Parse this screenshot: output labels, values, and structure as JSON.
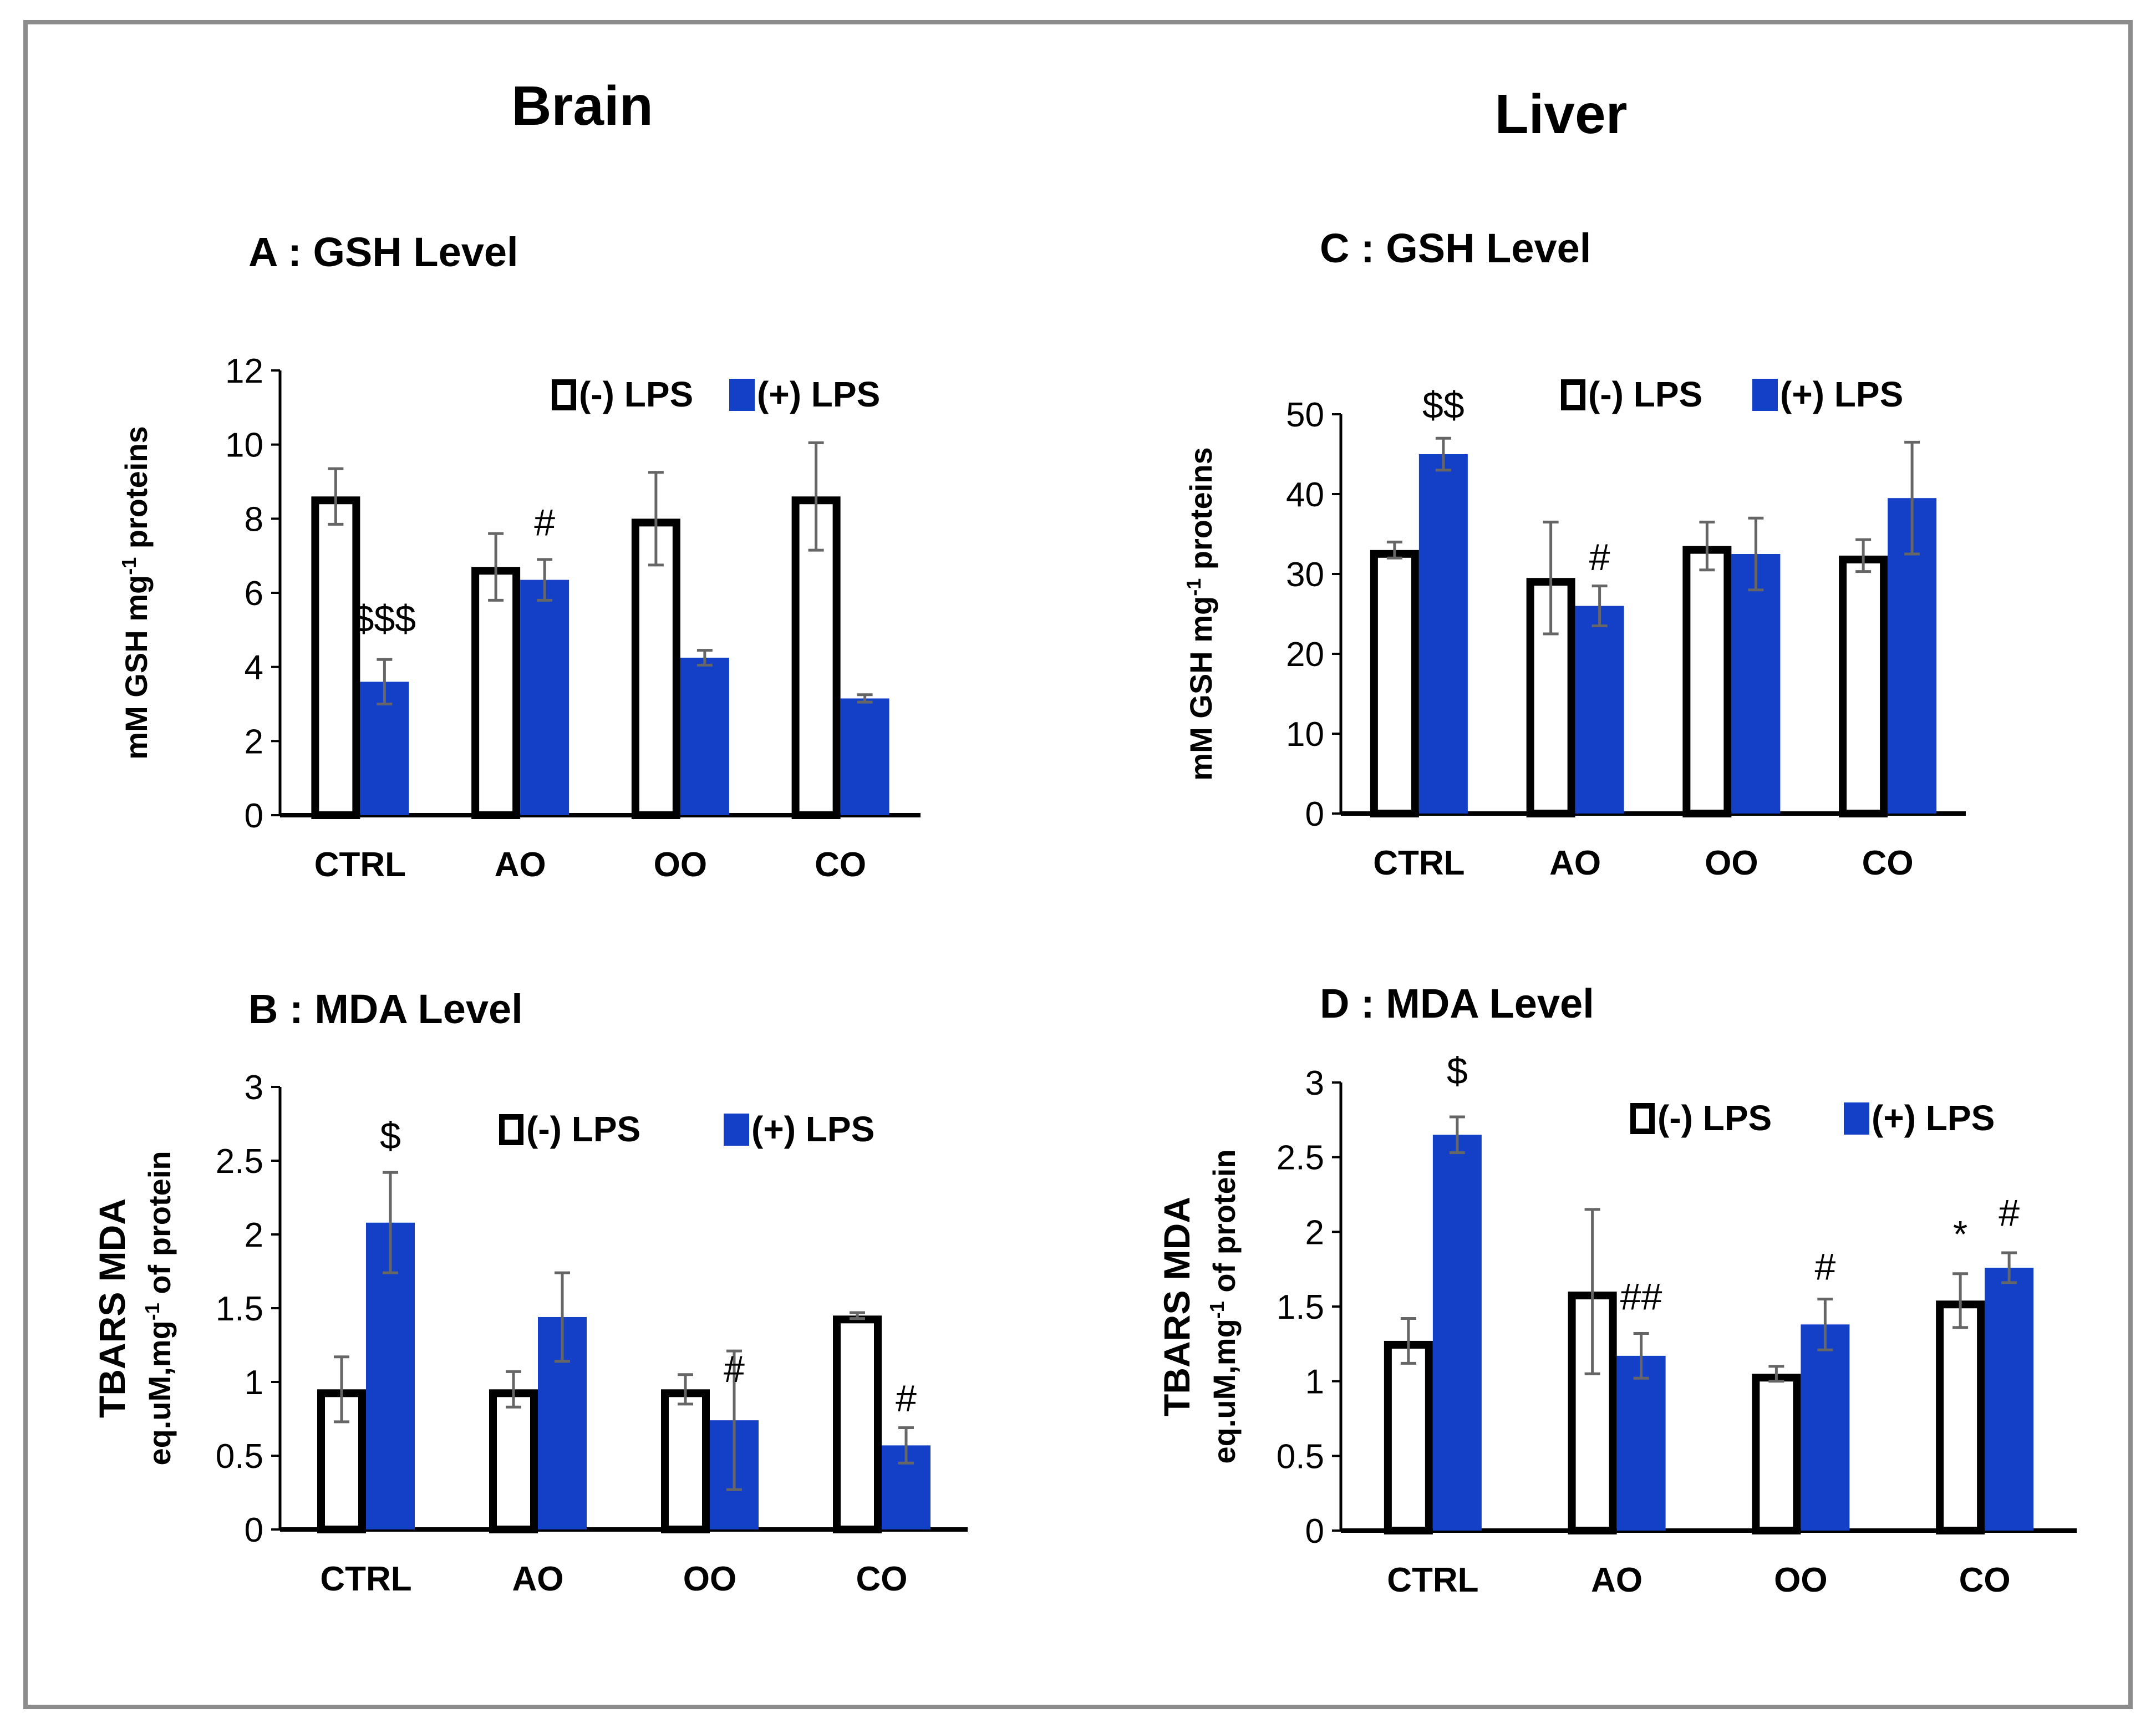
{
  "columns": [
    {
      "title": "Brain"
    },
    {
      "title": "Liver"
    }
  ],
  "colors": {
    "neg_fill": "#ffffff",
    "neg_stroke": "#000000",
    "pos_fill": "#1440c8",
    "error": "#666666",
    "axis": "#000000",
    "frame": "#8c8c8c"
  },
  "chart_data": [
    {
      "id": "A",
      "type": "bar",
      "title": "A : GSH Level",
      "ylabel": [
        "mM GSH mg-1 proteins"
      ],
      "categories": [
        "CTRL",
        "AO",
        "OO",
        "CO"
      ],
      "ylim": [
        0,
        12
      ],
      "yticks": [
        0,
        2,
        4,
        6,
        8,
        10,
        12
      ],
      "series": [
        {
          "name": "(-) LPS",
          "values": [
            8.6,
            6.7,
            8.0,
            8.6
          ],
          "errors": [
            0.75,
            0.9,
            1.25,
            1.45
          ]
        },
        {
          "name": "(+) LPS",
          "values": [
            3.6,
            6.35,
            4.25,
            3.15
          ],
          "errors": [
            0.6,
            0.55,
            0.2,
            0.1
          ]
        }
      ],
      "annotations": [
        {
          "text": "$$$",
          "category": 0,
          "series": 1,
          "y": 4.95
        },
        {
          "text": "#",
          "category": 1,
          "series": 1,
          "y": 7.55
        }
      ]
    },
    {
      "id": "B",
      "type": "bar",
      "title": "B : MDA Level",
      "ylabel": [
        "TBARS MDA",
        "eq.uM,mg-1 of protein"
      ],
      "categories": [
        "CTRL",
        "AO",
        "OO",
        "CO"
      ],
      "ylim": [
        0,
        3
      ],
      "yticks": [
        0,
        0.5,
        1,
        1.5,
        2,
        2.5,
        3
      ],
      "series": [
        {
          "name": "(-) LPS",
          "values": [
            0.95,
            0.95,
            0.95,
            1.45
          ],
          "errors": [
            0.22,
            0.12,
            0.1,
            0.02
          ]
        },
        {
          "name": "(+) LPS",
          "values": [
            2.08,
            1.44,
            0.74,
            0.57
          ],
          "errors": [
            0.34,
            0.3,
            0.47,
            0.12
          ]
        }
      ],
      "annotations": [
        {
          "text": "$",
          "category": 0,
          "series": 1,
          "y": 2.58
        },
        {
          "text": "#",
          "category": 2,
          "series": 1,
          "y": 1.0
        },
        {
          "text": "#",
          "category": 3,
          "series": 1,
          "y": 0.8
        }
      ]
    },
    {
      "id": "C",
      "type": "bar",
      "title": "C : GSH Level",
      "ylabel": [
        "mM GSH mg-1 proteins"
      ],
      "categories": [
        "CTRL",
        "AO",
        "OO",
        "CO"
      ],
      "ylim": [
        0,
        50
      ],
      "yticks": [
        0,
        10,
        20,
        30,
        40,
        50
      ],
      "series": [
        {
          "name": "(-) LPS",
          "values": [
            33,
            29.5,
            33.5,
            32.3
          ],
          "errors": [
            1.0,
            7.0,
            3.0,
            2.0
          ]
        },
        {
          "name": "(+) LPS",
          "values": [
            45,
            26,
            32.5,
            39.5
          ],
          "errors": [
            2.0,
            2.5,
            4.5,
            7.0
          ]
        }
      ],
      "annotations": [
        {
          "text": "$$",
          "category": 0,
          "series": 1,
          "y": 49.5
        },
        {
          "text": "#",
          "category": 1,
          "series": 1,
          "y": 30.5
        }
      ]
    },
    {
      "id": "D",
      "type": "bar",
      "title": "D : MDA Level",
      "ylabel": [
        "TBARS MDA",
        "eq.uM,mg-1 of protein"
      ],
      "categories": [
        "CTRL",
        "AO",
        "OO",
        "CO"
      ],
      "ylim": [
        0,
        3
      ],
      "yticks": [
        0,
        0.5,
        1,
        1.5,
        2,
        2.5,
        3
      ],
      "series": [
        {
          "name": "(-) LPS",
          "values": [
            1.27,
            1.6,
            1.05,
            1.54
          ],
          "errors": [
            0.15,
            0.55,
            0.05,
            0.18
          ]
        },
        {
          "name": "(+) LPS",
          "values": [
            2.65,
            1.17,
            1.38,
            1.76
          ],
          "errors": [
            0.12,
            0.15,
            0.17,
            0.1
          ]
        }
      ],
      "annotations": [
        {
          "text": "$",
          "category": 0,
          "series": 1,
          "y": 2.99
        },
        {
          "text": "##",
          "category": 1,
          "series": 1,
          "y": 1.48
        },
        {
          "text": "#",
          "category": 2,
          "series": 1,
          "y": 1.68
        },
        {
          "text": "*",
          "category": 3,
          "series": 0,
          "y": 1.9
        },
        {
          "text": "#",
          "category": 3,
          "series": 1,
          "y": 2.04
        }
      ]
    }
  ]
}
